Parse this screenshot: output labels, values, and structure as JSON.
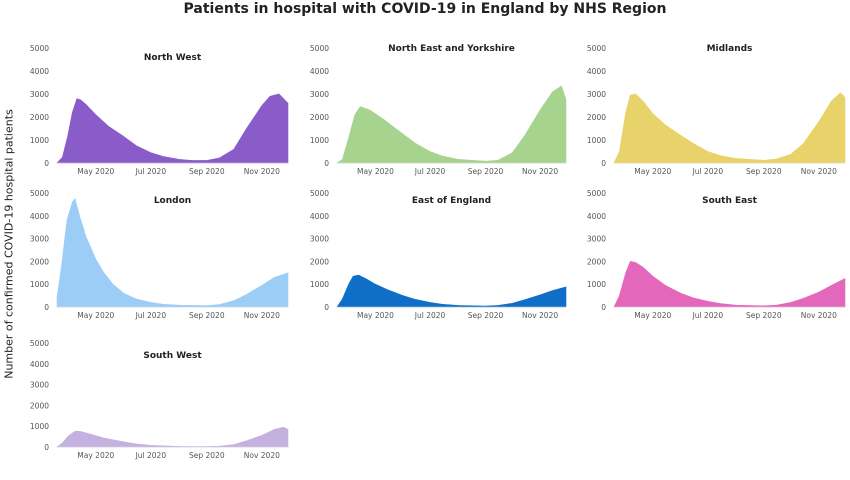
{
  "title": "Patients in hospital with COVID-19 in England by NHS Region",
  "ylabel": "Number of confirmed COVID-19 hospital patients",
  "chart_data": {
    "type": "area",
    "x_tick_labels": [
      "May 2020",
      "Jul 2020",
      "Sep 2020",
      "Nov 2020"
    ],
    "x_range": [
      "2020-03-19",
      "2020-11-30"
    ],
    "y_ticks": [
      0,
      1000,
      2000,
      3000,
      4000,
      5000
    ],
    "ylim": [
      0,
      5000
    ],
    "panels": [
      {
        "name": "North West",
        "color": "#8a5cc9",
        "points": [
          [
            "2020-03-19",
            0
          ],
          [
            "2020-03-25",
            250
          ],
          [
            "2020-03-31",
            1200
          ],
          [
            "2020-04-05",
            2200
          ],
          [
            "2020-04-10",
            2800
          ],
          [
            "2020-04-14",
            2750
          ],
          [
            "2020-04-20",
            2550
          ],
          [
            "2020-05-01",
            2100
          ],
          [
            "2020-05-15",
            1600
          ],
          [
            "2020-06-01",
            1150
          ],
          [
            "2020-06-15",
            750
          ],
          [
            "2020-07-01",
            450
          ],
          [
            "2020-07-15",
            280
          ],
          [
            "2020-08-01",
            160
          ],
          [
            "2020-08-15",
            110
          ],
          [
            "2020-09-01",
            110
          ],
          [
            "2020-09-15",
            220
          ],
          [
            "2020-10-01",
            600
          ],
          [
            "2020-10-15",
            1500
          ],
          [
            "2020-11-01",
            2500
          ],
          [
            "2020-11-10",
            2900
          ],
          [
            "2020-11-20",
            3000
          ],
          [
            "2020-11-30",
            2600
          ]
        ]
      },
      {
        "name": "North East and Yorkshire",
        "color": "#a6d38e",
        "points": [
          [
            "2020-03-19",
            0
          ],
          [
            "2020-03-25",
            150
          ],
          [
            "2020-04-01",
            1100
          ],
          [
            "2020-04-08",
            2100
          ],
          [
            "2020-04-14",
            2450
          ],
          [
            "2020-04-25",
            2300
          ],
          [
            "2020-05-10",
            1900
          ],
          [
            "2020-06-01",
            1250
          ],
          [
            "2020-06-15",
            850
          ],
          [
            "2020-07-01",
            500
          ],
          [
            "2020-07-15",
            300
          ],
          [
            "2020-08-01",
            160
          ],
          [
            "2020-09-01",
            80
          ],
          [
            "2020-09-15",
            120
          ],
          [
            "2020-10-01",
            450
          ],
          [
            "2020-10-15",
            1200
          ],
          [
            "2020-11-01",
            2300
          ],
          [
            "2020-11-15",
            3100
          ],
          [
            "2020-11-25",
            3350
          ],
          [
            "2020-11-30",
            2750
          ]
        ]
      },
      {
        "name": "Midlands",
        "color": "#e8d36a",
        "points": [
          [
            "2020-03-19",
            0
          ],
          [
            "2020-03-25",
            500
          ],
          [
            "2020-04-01",
            2200
          ],
          [
            "2020-04-06",
            2950
          ],
          [
            "2020-04-12",
            3000
          ],
          [
            "2020-04-20",
            2700
          ],
          [
            "2020-05-01",
            2150
          ],
          [
            "2020-05-15",
            1650
          ],
          [
            "2020-06-01",
            1200
          ],
          [
            "2020-06-15",
            850
          ],
          [
            "2020-07-01",
            500
          ],
          [
            "2020-07-15",
            320
          ],
          [
            "2020-08-01",
            200
          ],
          [
            "2020-09-01",
            120
          ],
          [
            "2020-09-15",
            170
          ],
          [
            "2020-10-01",
            380
          ],
          [
            "2020-10-15",
            850
          ],
          [
            "2020-11-01",
            1800
          ],
          [
            "2020-11-15",
            2700
          ],
          [
            "2020-11-25",
            3050
          ],
          [
            "2020-11-30",
            2850
          ]
        ]
      },
      {
        "name": "London",
        "color": "#9ccdf6",
        "points": [
          [
            "2020-03-19",
            400
          ],
          [
            "2020-03-24",
            1800
          ],
          [
            "2020-03-30",
            3800
          ],
          [
            "2020-04-05",
            4600
          ],
          [
            "2020-04-08",
            4750
          ],
          [
            "2020-04-13",
            4000
          ],
          [
            "2020-04-20",
            3100
          ],
          [
            "2020-05-01",
            2100
          ],
          [
            "2020-05-10",
            1500
          ],
          [
            "2020-05-20",
            1000
          ],
          [
            "2020-06-01",
            600
          ],
          [
            "2020-06-15",
            350
          ],
          [
            "2020-07-01",
            200
          ],
          [
            "2020-07-15",
            120
          ],
          [
            "2020-08-01",
            80
          ],
          [
            "2020-09-01",
            60
          ],
          [
            "2020-09-15",
            110
          ],
          [
            "2020-10-01",
            280
          ],
          [
            "2020-10-15",
            550
          ],
          [
            "2020-11-01",
            950
          ],
          [
            "2020-11-15",
            1300
          ],
          [
            "2020-11-30",
            1500
          ]
        ]
      },
      {
        "name": "East of England",
        "color": "#0f6ec6",
        "points": [
          [
            "2020-03-19",
            0
          ],
          [
            "2020-03-25",
            350
          ],
          [
            "2020-04-01",
            1000
          ],
          [
            "2020-04-06",
            1350
          ],
          [
            "2020-04-12",
            1400
          ],
          [
            "2020-04-20",
            1250
          ],
          [
            "2020-05-01",
            1000
          ],
          [
            "2020-05-15",
            750
          ],
          [
            "2020-06-01",
            500
          ],
          [
            "2020-06-15",
            330
          ],
          [
            "2020-07-01",
            200
          ],
          [
            "2020-07-15",
            120
          ],
          [
            "2020-08-01",
            70
          ],
          [
            "2020-09-01",
            40
          ],
          [
            "2020-09-15",
            70
          ],
          [
            "2020-10-01",
            160
          ],
          [
            "2020-10-15",
            320
          ],
          [
            "2020-11-01",
            530
          ],
          [
            "2020-11-15",
            720
          ],
          [
            "2020-11-30",
            880
          ]
        ]
      },
      {
        "name": "South East",
        "color": "#e368bb",
        "points": [
          [
            "2020-03-19",
            0
          ],
          [
            "2020-03-25",
            500
          ],
          [
            "2020-04-01",
            1500
          ],
          [
            "2020-04-06",
            2000
          ],
          [
            "2020-04-12",
            1950
          ],
          [
            "2020-04-20",
            1750
          ],
          [
            "2020-05-01",
            1350
          ],
          [
            "2020-05-15",
            950
          ],
          [
            "2020-06-01",
            600
          ],
          [
            "2020-06-15",
            400
          ],
          [
            "2020-07-01",
            250
          ],
          [
            "2020-07-15",
            150
          ],
          [
            "2020-08-01",
            80
          ],
          [
            "2020-09-01",
            50
          ],
          [
            "2020-09-15",
            80
          ],
          [
            "2020-10-01",
            200
          ],
          [
            "2020-10-15",
            380
          ],
          [
            "2020-11-01",
            650
          ],
          [
            "2020-11-15",
            950
          ],
          [
            "2020-11-30",
            1250
          ]
        ]
      },
      {
        "name": "South West",
        "color": "#c5b1e0",
        "points": [
          [
            "2020-03-19",
            0
          ],
          [
            "2020-03-25",
            200
          ],
          [
            "2020-04-01",
            550
          ],
          [
            "2020-04-08",
            760
          ],
          [
            "2020-04-14",
            750
          ],
          [
            "2020-04-25",
            620
          ],
          [
            "2020-05-10",
            430
          ],
          [
            "2020-06-01",
            250
          ],
          [
            "2020-06-15",
            150
          ],
          [
            "2020-07-01",
            80
          ],
          [
            "2020-08-01",
            30
          ],
          [
            "2020-09-01",
            20
          ],
          [
            "2020-09-15",
            40
          ],
          [
            "2020-10-01",
            120
          ],
          [
            "2020-10-15",
            300
          ],
          [
            "2020-11-01",
            560
          ],
          [
            "2020-11-15",
            850
          ],
          [
            "2020-11-25",
            950
          ],
          [
            "2020-11-30",
            850
          ]
        ]
      }
    ]
  }
}
